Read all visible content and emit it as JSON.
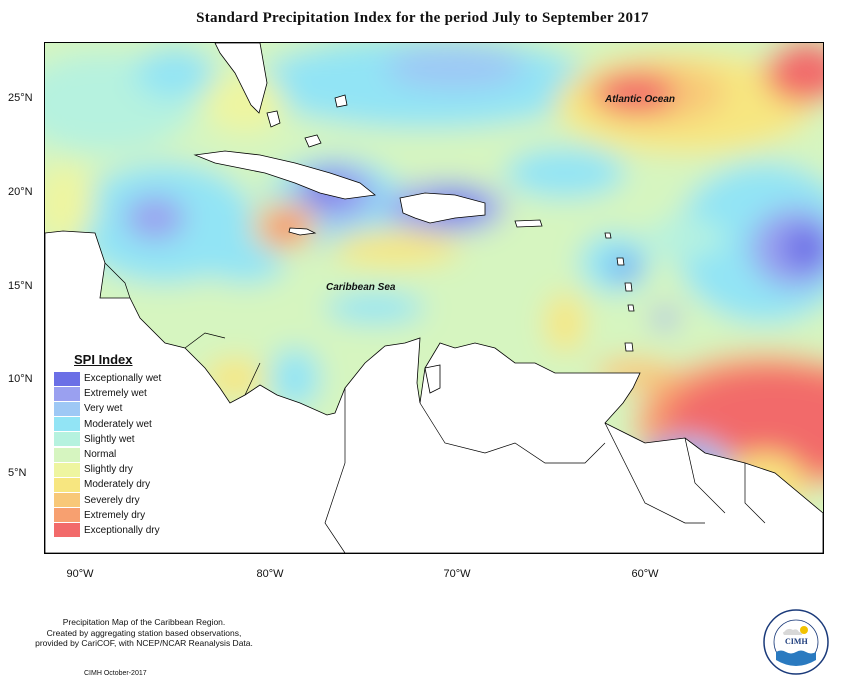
{
  "title": "Standard Precipitation Index for the period July to September 2017",
  "axes": {
    "latitude_labels": [
      "25°N",
      "20°N",
      "15°N",
      "10°N",
      "5°N"
    ],
    "longitude_labels": [
      "90°W",
      "80°W",
      "70°W",
      "60°W"
    ]
  },
  "map_labels": {
    "ocean": "Atlantic Ocean",
    "sea": "Caribbean Sea"
  },
  "legend": {
    "title": "SPI Index",
    "items": [
      {
        "label": "Exceptionally wet",
        "color": "#6b6fe6"
      },
      {
        "label": "Extremely wet",
        "color": "#9aa0f0"
      },
      {
        "label": "Very wet",
        "color": "#9ec8f5"
      },
      {
        "label": "Moderately wet",
        "color": "#92e4f5"
      },
      {
        "label": "Slightly wet",
        "color": "#b6f2df"
      },
      {
        "label": "Normal",
        "color": "#d6f5c0"
      },
      {
        "label": "Slightly dry",
        "color": "#eef5a0"
      },
      {
        "label": "Moderately dry",
        "color": "#f7e680"
      },
      {
        "label": "Severely dry",
        "color": "#f8c878"
      },
      {
        "label": "Extremely dry",
        "color": "#f7a070"
      },
      {
        "label": "Exceptionally dry",
        "color": "#f26a6a"
      }
    ]
  },
  "footer": {
    "line1": "Precipitation Map of the Caribbean Region.",
    "line2": "Created by aggregating station based observations,",
    "line3": "provided by CariCOF, with NCEP/NCAR Reanalysis Data.",
    "credit": "CIMH October-2017"
  },
  "logo": {
    "text": "CIMH"
  }
}
